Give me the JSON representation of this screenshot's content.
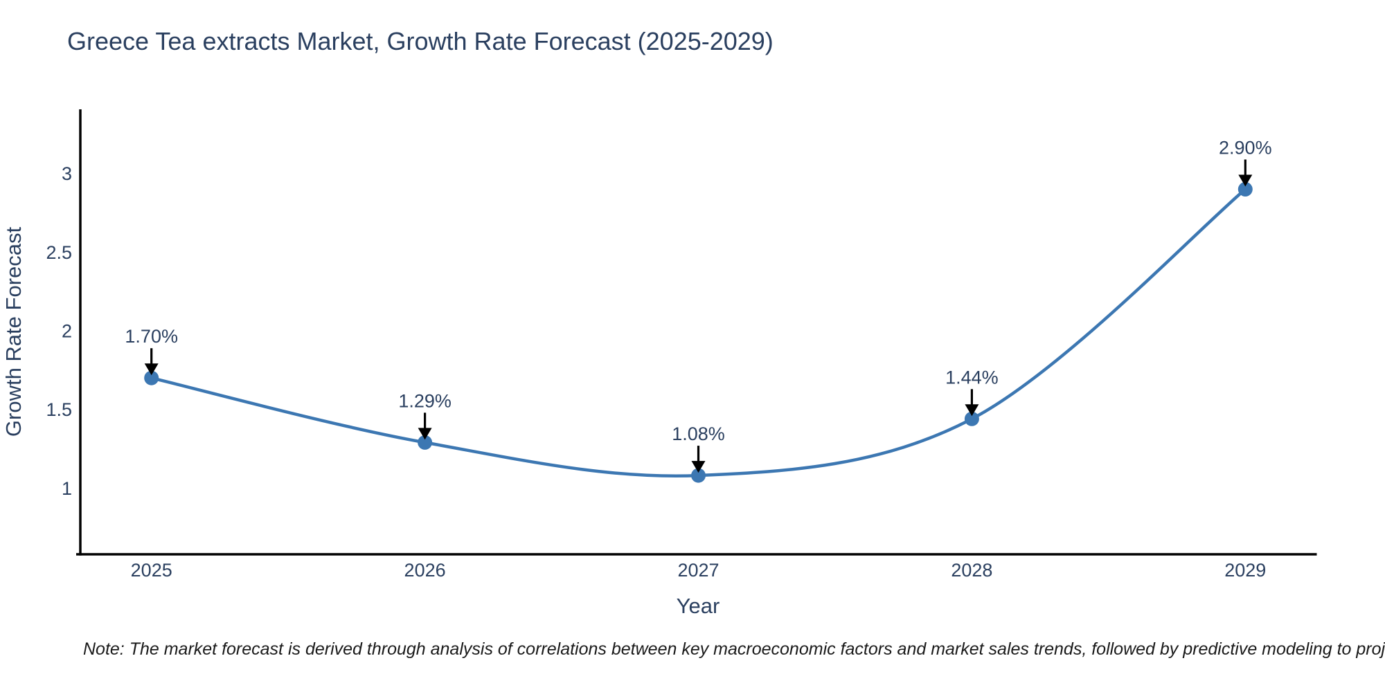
{
  "note": {
    "text": "Note: The market forecast is derived through analysis of correlations between key macroeconomic factors and market sales trends, followed by predictive modeling to project future sales"
  },
  "chart_data": {
    "type": "line",
    "title": "Greece Tea extracts Market, Growth Rate Forecast (2025-2029)",
    "xlabel": "Year",
    "ylabel": "Growth Rate Forecast",
    "x": [
      2025,
      2026,
      2027,
      2028,
      2029
    ],
    "values": [
      1.7,
      1.29,
      1.08,
      1.44,
      2.9
    ],
    "labels": [
      "1.70%",
      "1.29%",
      "1.08%",
      "1.44%",
      "2.90%"
    ],
    "xticks": [
      "2025",
      "2026",
      "2027",
      "2028",
      "2029"
    ],
    "yticks": [
      1,
      1.5,
      2,
      2.5,
      3
    ],
    "ytick_labels": [
      "1",
      "1.5",
      "2",
      "2.5",
      "3"
    ],
    "xlim": [
      2024.74,
      2029.26
    ],
    "ylim": [
      0.579,
      3.408
    ],
    "grid": false,
    "legend": false,
    "line_shape": "spline",
    "colors": {
      "line": "#3c77b2",
      "marker": "#3c77b2",
      "axis": "#000000",
      "text": "#2a3f5f",
      "annotation_arrow": "#000000",
      "background": "#ffffff"
    }
  }
}
